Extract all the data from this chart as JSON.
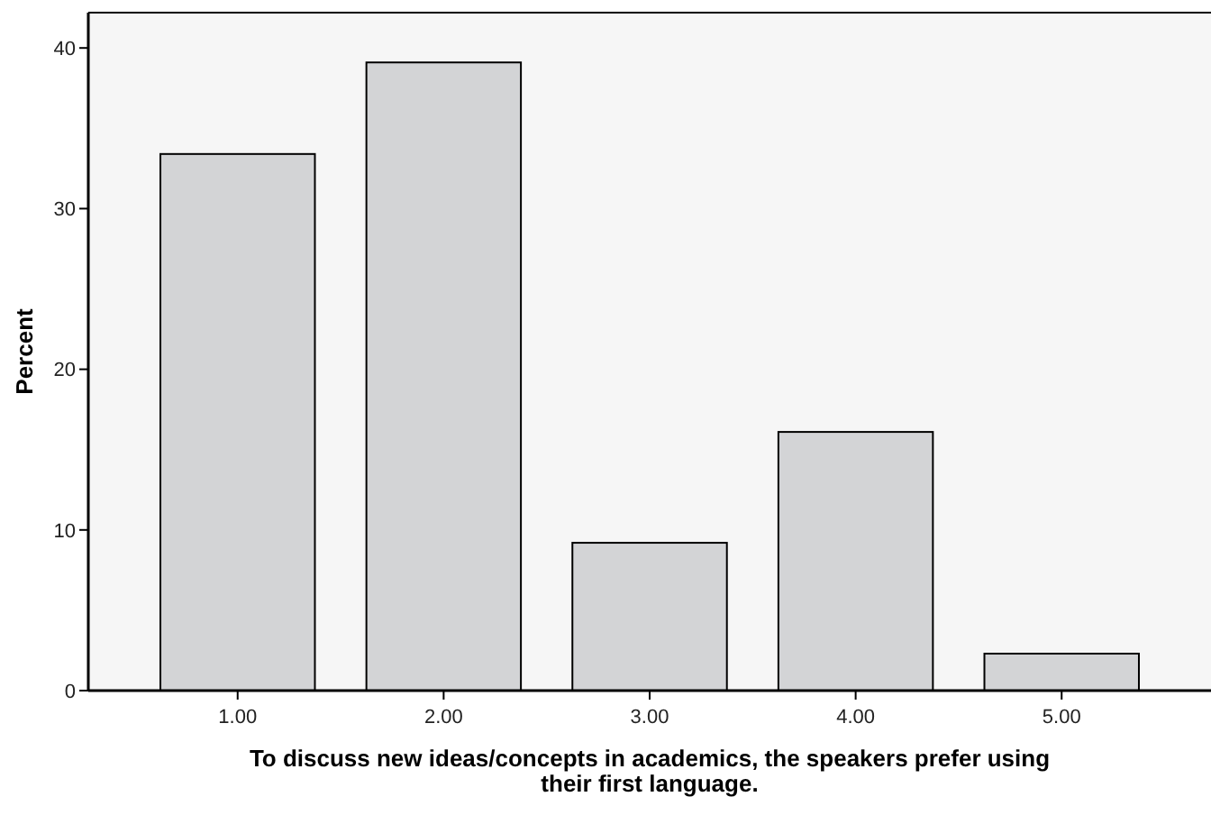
{
  "chart_data": {
    "type": "bar",
    "xlabel": "To discuss new ideas/concepts in academics, the speakers prefer using their first language.",
    "ylabel": "Percent",
    "categories": [
      "1.00",
      "2.00",
      "3.00",
      "4.00",
      "5.00"
    ],
    "values": [
      33.4,
      39.1,
      9.2,
      16.1,
      2.3
    ],
    "color": "#d3d4d6",
    "ylim": [
      0,
      42.2
    ],
    "yticks": [
      0,
      10,
      20,
      30,
      40
    ],
    "grid": false
  }
}
